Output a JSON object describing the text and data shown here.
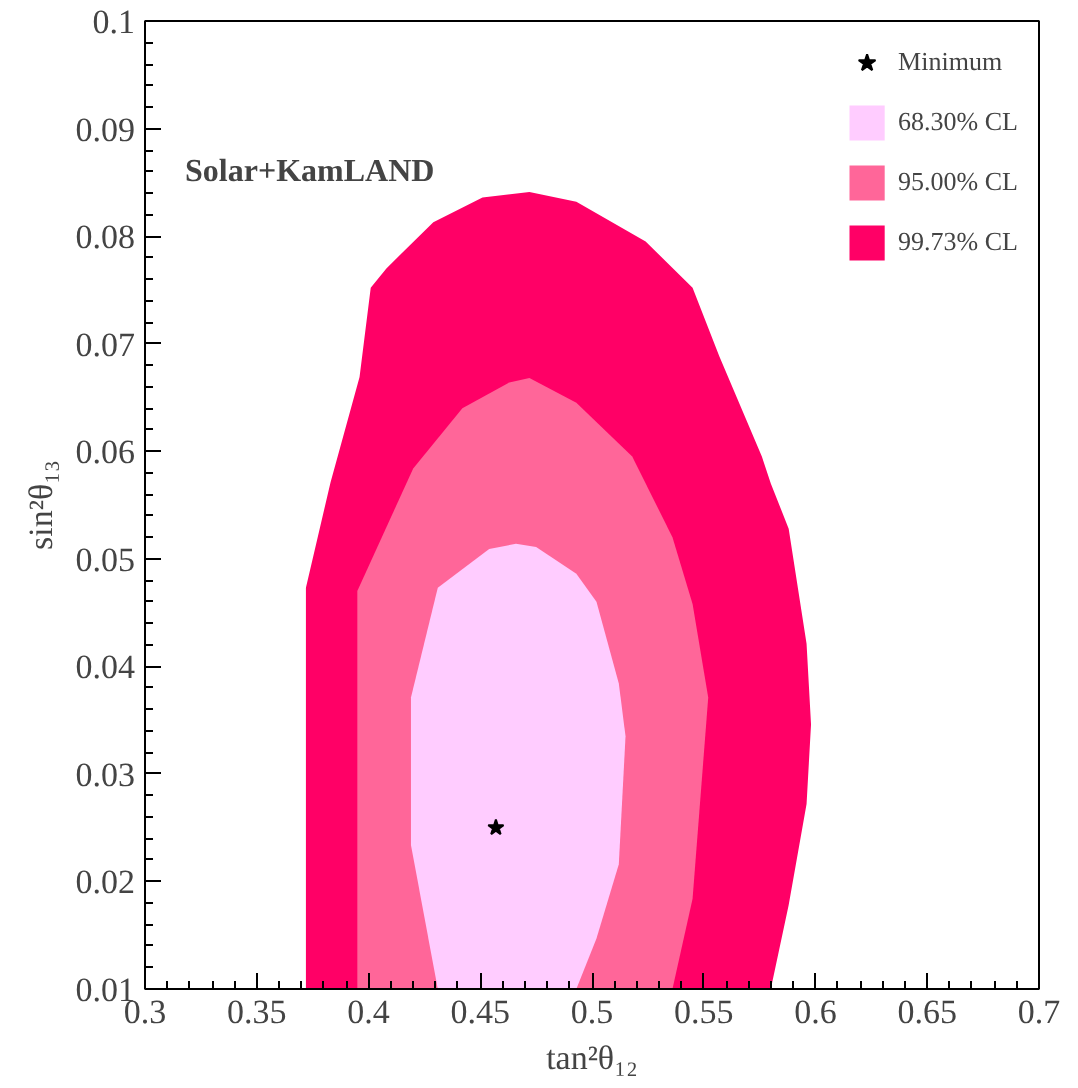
{
  "chart_data": {
    "type": "area",
    "xlabel": "tan²θ₁₂",
    "ylabel": "sin²θ₁₃",
    "annotations": [
      "Solar+KamLAND"
    ],
    "xlim": [
      0.3,
      0.7
    ],
    "ylim": [
      0.01,
      0.1
    ],
    "xticks": [
      0.3,
      0.35,
      0.4,
      0.45,
      0.5,
      0.55,
      0.6,
      0.65,
      0.7
    ],
    "yticks": [
      0.01,
      0.02,
      0.03,
      0.04,
      0.05,
      0.06,
      0.07,
      0.08,
      0.09,
      0.1
    ],
    "grid": false,
    "legend": "top right",
    "series": [
      {
        "name": "Minimum",
        "type": "scatter",
        "marker": "star",
        "color": "#000000",
        "x": [
          0.457
        ],
        "values": [
          0.025
        ]
      },
      {
        "name": "68.30% CL",
        "color": "#ffccff",
        "x": [
          0.419,
          0.431,
          0.454,
          0.466,
          0.475,
          0.493,
          0.502,
          0.512,
          0.515,
          0.512,
          0.502,
          0.493,
          0.431,
          0.419
        ],
        "values": [
          0.0371,
          0.0473,
          0.0509,
          0.0514,
          0.0511,
          0.0486,
          0.046,
          0.0384,
          0.0335,
          0.0216,
          0.0147,
          0.01,
          0.01,
          0.0234
        ]
      },
      {
        "name": "95.00% CL",
        "color": "#ff6699",
        "x": [
          0.395,
          0.42,
          0.442,
          0.463,
          0.472,
          0.493,
          0.518,
          0.536,
          0.545,
          0.552,
          0.545,
          0.536,
          0.395
        ],
        "values": [
          0.047,
          0.0584,
          0.064,
          0.0664,
          0.0668,
          0.0645,
          0.0595,
          0.052,
          0.0458,
          0.0371,
          0.0184,
          0.01,
          0.01
        ]
      },
      {
        "name": "99.73% CL",
        "color": "#ff0066",
        "x": [
          0.372,
          0.383,
          0.396,
          0.401,
          0.408,
          0.429,
          0.451,
          0.472,
          0.493,
          0.524,
          0.545,
          0.557,
          0.576,
          0.58,
          0.588,
          0.596,
          0.598,
          0.596,
          0.588,
          0.58,
          0.372
        ],
        "values": [
          0.0473,
          0.0571,
          0.0669,
          0.0752,
          0.077,
          0.0813,
          0.0836,
          0.0841,
          0.0832,
          0.0795,
          0.0752,
          0.0688,
          0.0595,
          0.057,
          0.0528,
          0.0421,
          0.0346,
          0.0272,
          0.0178,
          0.01,
          0.01
        ]
      }
    ]
  }
}
